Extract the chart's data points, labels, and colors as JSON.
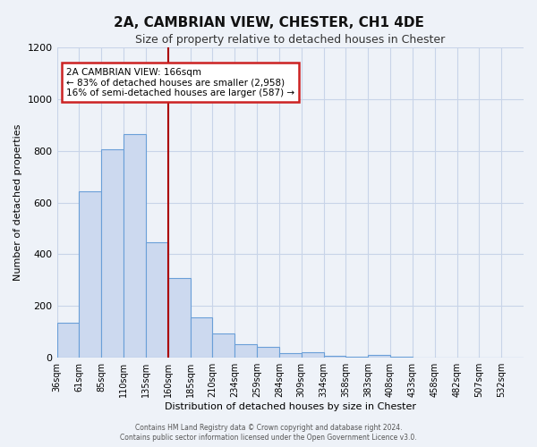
{
  "title": "2A, CAMBRIAN VIEW, CHESTER, CH1 4DE",
  "subtitle": "Size of property relative to detached houses in Chester",
  "xlabel": "Distribution of detached houses by size in Chester",
  "ylabel": "Number of detached properties",
  "bar_values": [
    135,
    645,
    805,
    865,
    445,
    310,
    155,
    95,
    52,
    42,
    18,
    22,
    8,
    5,
    10,
    3,
    0,
    0,
    0,
    0,
    0
  ],
  "bar_labels": [
    "36sqm",
    "61sqm",
    "85sqm",
    "110sqm",
    "135sqm",
    "160sqm",
    "185sqm",
    "210sqm",
    "234sqm",
    "259sqm",
    "284sqm",
    "309sqm",
    "334sqm",
    "358sqm",
    "383sqm",
    "408sqm",
    "433sqm",
    "458sqm",
    "482sqm",
    "507sqm",
    "532sqm"
  ],
  "bar_color": "#ccd9ef",
  "bar_edge_color": "#6a9fd8",
  "vline_x": 5,
  "vline_color": "#aa0000",
  "annotation_title": "2A CAMBRIAN VIEW: 166sqm",
  "annotation_line1": "← 83% of detached houses are smaller (2,958)",
  "annotation_line2": "16% of semi-detached houses are larger (587) →",
  "annotation_box_color": "#ffffff",
  "annotation_box_edge_color": "#cc2222",
  "ylim": [
    0,
    1200
  ],
  "yticks": [
    0,
    200,
    400,
    600,
    800,
    1000,
    1200
  ],
  "grid_color": "#c8d4e8",
  "bg_color": "#eef2f8",
  "footer1": "Contains HM Land Registry data © Crown copyright and database right 2024.",
  "footer2": "Contains public sector information licensed under the Open Government Licence v3.0."
}
